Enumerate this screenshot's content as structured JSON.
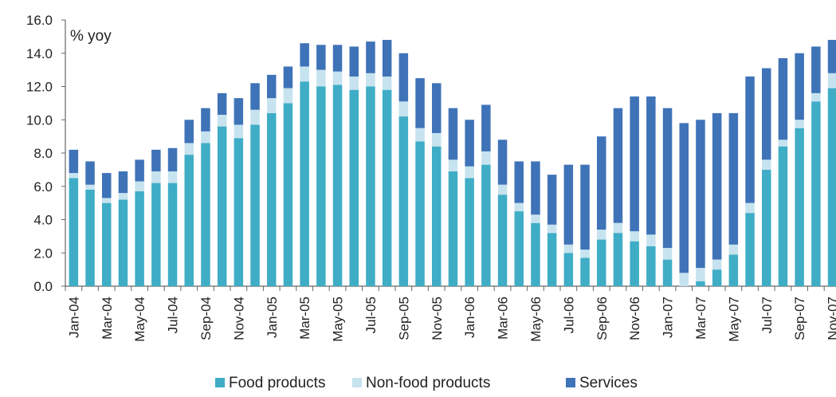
{
  "chart_data": {
    "type": "bar",
    "stacked": true,
    "ylabel": "% yoy",
    "ylim": [
      0,
      16
    ],
    "yticks": [
      "0.0",
      "2.0",
      "4.0",
      "6.0",
      "8.0",
      "10.0",
      "12.0",
      "14.0",
      "16.0"
    ],
    "grid": false,
    "legend_position": "bottom",
    "categories": [
      "Jan-04",
      "Feb-04",
      "Mar-04",
      "Apr-04",
      "May-04",
      "Jun-04",
      "Jul-04",
      "Aug-04",
      "Sep-04",
      "Oct-04",
      "Nov-04",
      "Dec-04",
      "Jan-05",
      "Feb-05",
      "Mar-05",
      "Apr-05",
      "May-05",
      "Jun-05",
      "Jul-05",
      "Aug-05",
      "Sep-05",
      "Oct-05",
      "Nov-05",
      "Dec-05",
      "Jan-06",
      "Feb-06",
      "Mar-06",
      "Apr-06",
      "May-06",
      "Jun-06",
      "Jul-06",
      "Aug-06",
      "Sep-06",
      "Oct-06",
      "Nov-06",
      "Dec-06",
      "Jan-07",
      "Feb-07",
      "Mar-07",
      "Apr-07",
      "May-07",
      "Jun-07",
      "Jul-07",
      "Aug-07",
      "Sep-07",
      "Oct-07",
      "Nov-07"
    ],
    "tick_labels": [
      "Jan-04",
      "Mar-04",
      "May-04",
      "Jul-04",
      "Sep-04",
      "Nov-04",
      "Jan-05",
      "Mar-05",
      "May-05",
      "Jul-05",
      "Sep-05",
      "Nov-05",
      "Jan-06",
      "Mar-06",
      "May-06",
      "Jul-06",
      "Sep-06",
      "Nov-06",
      "Jan-07",
      "Mar-07",
      "May-07",
      "Jul-07",
      "Sep-07",
      "Nov-07"
    ],
    "series": [
      {
        "name": "Food products",
        "color": "#3fadc6",
        "values": [
          6.5,
          5.8,
          5.0,
          5.2,
          5.7,
          6.2,
          6.2,
          7.9,
          8.6,
          9.6,
          8.9,
          9.7,
          10.4,
          11.0,
          12.3,
          12.0,
          12.1,
          11.8,
          12.0,
          11.8,
          10.2,
          8.7,
          8.4,
          6.9,
          6.5,
          7.3,
          5.5,
          4.5,
          3.8,
          3.2,
          2.0,
          1.7,
          2.8,
          3.2,
          2.7,
          2.4,
          1.6,
          0.0,
          0.3,
          1.0,
          1.9,
          4.4,
          7.0,
          8.4,
          9.5,
          11.1,
          11.9
        ]
      },
      {
        "name": "Non-food products",
        "color": "#c6e3ef",
        "values": [
          0.3,
          0.3,
          0.3,
          0.4,
          0.6,
          0.7,
          0.7,
          0.7,
          0.7,
          0.7,
          0.8,
          0.9,
          0.9,
          0.9,
          0.9,
          1.0,
          0.8,
          0.8,
          0.8,
          0.8,
          0.9,
          0.8,
          0.8,
          0.7,
          0.7,
          0.8,
          0.6,
          0.5,
          0.5,
          0.5,
          0.5,
          0.5,
          0.6,
          0.6,
          0.6,
          0.7,
          0.7,
          0.8,
          0.8,
          0.6,
          0.6,
          0.6,
          0.6,
          0.4,
          0.5,
          0.5,
          0.9
        ]
      },
      {
        "name": "Services",
        "color": "#3f73b8",
        "values": [
          1.4,
          1.4,
          1.5,
          1.3,
          1.3,
          1.3,
          1.4,
          1.4,
          1.4,
          1.3,
          1.6,
          1.6,
          1.4,
          1.3,
          1.4,
          1.5,
          1.6,
          1.8,
          1.9,
          2.2,
          2.9,
          3.0,
          3.0,
          3.1,
          2.8,
          2.8,
          2.7,
          2.5,
          3.2,
          3.0,
          4.8,
          5.1,
          5.6,
          6.9,
          8.1,
          8.3,
          8.4,
          9.0,
          8.9,
          8.8,
          7.9,
          7.6,
          5.5,
          4.9,
          4.0,
          2.8,
          2.0
        ]
      }
    ]
  }
}
